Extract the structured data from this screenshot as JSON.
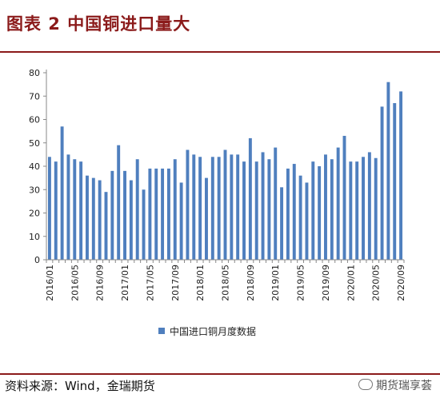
{
  "header": {
    "title": "图表 2 中国铜进口量大"
  },
  "footer": {
    "source": "资料来源：Wind，金瑞期货",
    "watermark": "期货瑞享荟"
  },
  "colors": {
    "bar": "#4f7fbe",
    "title": "#8b1a1a",
    "axis": "#888888"
  },
  "chart_data": {
    "type": "bar",
    "title": "",
    "xlabel": "",
    "ylabel": "",
    "ylim": [
      0,
      80
    ],
    "yticks": [
      0,
      10,
      20,
      30,
      40,
      50,
      60,
      70,
      80
    ],
    "grid": false,
    "legend_position": "bottom",
    "categories": [
      "2016/01",
      "2016/02",
      "2016/03",
      "2016/04",
      "2016/05",
      "2016/06",
      "2016/07",
      "2016/08",
      "2016/09",
      "2016/10",
      "2016/11",
      "2016/12",
      "2017/01",
      "2017/02",
      "2017/03",
      "2017/04",
      "2017/05",
      "2017/06",
      "2017/07",
      "2017/08",
      "2017/09",
      "2017/10",
      "2017/11",
      "2017/12",
      "2018/01",
      "2018/02",
      "2018/03",
      "2018/04",
      "2018/05",
      "2018/06",
      "2018/07",
      "2018/08",
      "2018/09",
      "2018/10",
      "2018/11",
      "2018/12",
      "2019/01",
      "2019/02",
      "2019/03",
      "2019/04",
      "2019/05",
      "2019/06",
      "2019/07",
      "2019/08",
      "2019/09",
      "2019/10",
      "2019/11",
      "2019/12",
      "2020/01",
      "2020/02",
      "2020/03",
      "2020/04",
      "2020/05",
      "2020/06",
      "2020/07",
      "2020/08",
      "2020/09"
    ],
    "x_tick_labels": [
      "2016/01",
      "2016/05",
      "2016/09",
      "2017/01",
      "2017/05",
      "2017/09",
      "2018/01",
      "2018/05",
      "2018/09",
      "2019/01",
      "2019/05",
      "2019/09",
      "2020/01",
      "2020/05",
      "2020/09"
    ],
    "series": [
      {
        "name": "中国进口铜月度数据",
        "values": [
          44,
          42,
          57,
          45,
          43,
          42,
          36,
          35,
          34,
          29,
          38,
          49,
          38,
          34,
          43,
          30,
          39,
          39,
          39,
          39,
          43,
          33,
          47,
          45,
          44,
          35,
          44,
          44,
          47,
          45,
          45,
          42,
          52,
          42,
          46,
          43,
          48,
          31,
          39,
          41,
          36,
          33,
          42,
          40,
          45,
          43,
          48,
          53,
          42,
          42,
          44,
          46,
          43.5,
          65.5,
          76,
          67,
          72
        ]
      }
    ]
  }
}
